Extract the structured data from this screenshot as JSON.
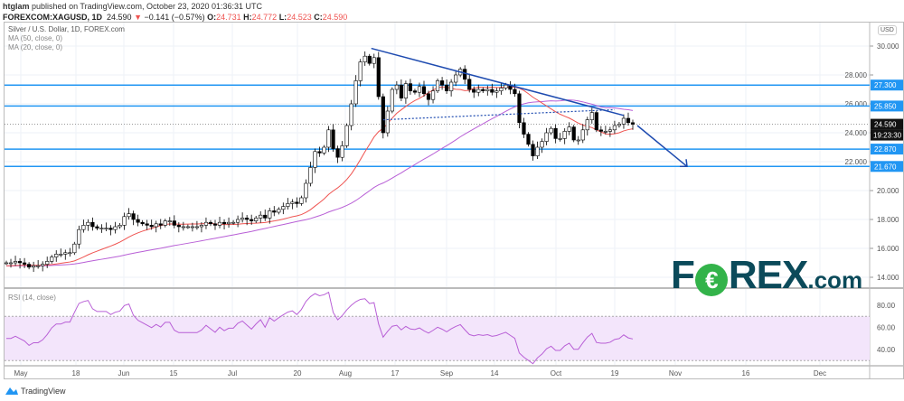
{
  "header": {
    "author": "htglam",
    "published": "published on TradingView.com, October 23, 2020 01:36:31 UTC",
    "symbol": "FOREXCOM:XAGUSD, 1D",
    "last": "24.590",
    "change": "−0.141 (−0.57%)",
    "o_label": "O:",
    "o": "24.731",
    "h_label": "H:",
    "h": "24.772",
    "l_label": "L:",
    "l": "24.523",
    "c_label": "C:",
    "c": "24.590"
  },
  "legend": {
    "title": "Silver / U.S. Dollar, 1D, FOREX.com",
    "ma50": "MA (50, close, 0)",
    "ma20": "MA (20, close, 0)",
    "rsi": "RSI (14, close)"
  },
  "currency": "USD",
  "price_axis": [
    "30.000",
    "28.000",
    "26.000",
    "24.000",
    "22.000",
    "20.000",
    "18.000",
    "16.000",
    "14.000"
  ],
  "price_ticks": [
    30,
    28,
    26,
    24,
    22,
    20,
    18,
    16,
    14
  ],
  "levels": [
    {
      "value": 27.3,
      "label": "27.300"
    },
    {
      "value": 25.85,
      "label": "25.850"
    },
    {
      "value": 22.87,
      "label": "22.870"
    },
    {
      "value": 21.67,
      "label": "21.670"
    }
  ],
  "current": {
    "value": 24.59,
    "label": "24.590",
    "countdown": "19:23:30"
  },
  "rsi_axis": [
    "80.00",
    "60.00",
    "40.00"
  ],
  "rsi_ticks": [
    80,
    60,
    40
  ],
  "time_axis": [
    "May",
    "18",
    "Jun",
    "15",
    "Jul",
    "20",
    "Aug",
    "17",
    "Sep",
    "14",
    "Oct",
    "19",
    "Nov",
    "16",
    "Dec"
  ],
  "colors": {
    "level": "#2196f3",
    "trend": "#1e4bb0",
    "ma20": "#ef5350",
    "ma50": "#b85fd6",
    "rsi": "#b85fd6",
    "bull": "#ffffff",
    "bear": "#000000"
  },
  "logo": {
    "text": "FOREX.com"
  },
  "footer": {
    "brand": "TradingView"
  },
  "chart_data": {
    "type": "candlestick",
    "ylim": [
      13.2,
      31.5
    ],
    "closes": [
      15.0,
      15.0,
      15.1,
      15.0,
      14.9,
      14.7,
      14.8,
      14.8,
      14.9,
      15.1,
      15.4,
      15.6,
      15.6,
      15.7,
      15.7,
      16.3,
      17.3,
      17.6,
      17.8,
      17.5,
      17.4,
      17.4,
      17.4,
      17.3,
      17.5,
      17.6,
      18.2,
      18.4,
      18.0,
      17.8,
      17.7,
      17.6,
      17.5,
      17.7,
      17.6,
      17.9,
      17.9,
      17.6,
      17.5,
      17.5,
      17.5,
      17.5,
      17.5,
      17.6,
      17.8,
      17.7,
      17.6,
      17.8,
      17.7,
      17.8,
      17.8,
      18.0,
      18.1,
      18.0,
      17.9,
      18.1,
      18.3,
      18.1,
      18.6,
      18.5,
      18.7,
      18.9,
      19.1,
      19.2,
      19.1,
      19.5,
      20.5,
      21.6,
      22.7,
      22.6,
      23.0,
      24.2,
      22.9,
      22.3,
      23.1,
      24.5,
      26.0,
      27.6,
      28.9,
      29.3,
      28.8,
      29.2,
      26.5,
      24.0,
      25.5,
      27.0,
      27.3,
      26.4,
      27.4,
      26.9,
      26.8,
      27.2,
      26.7,
      26.3,
      26.9,
      27.6,
      27.3,
      26.9,
      27.5,
      28.0,
      28.4,
      27.7,
      27.0,
      26.8,
      27.0,
      26.9,
      27.0,
      26.8,
      26.9,
      27.1,
      27.3,
      27.0,
      26.7,
      24.7,
      23.9,
      23.2,
      22.4,
      23.0,
      23.4,
      24.0,
      24.3,
      23.6,
      23.6,
      24.1,
      24.4,
      23.5,
      23.5,
      24.2,
      24.9,
      25.4,
      24.2,
      24.1,
      24.1,
      24.2,
      24.5,
      24.6,
      25.0,
      24.7,
      24.59
    ],
    "trendline": [
      29.84,
      25.2
    ],
    "dotted_line": [
      24.9,
      25.6
    ],
    "arrow": [
      24.5,
      21.67
    ],
    "rsi_band": [
      30,
      70
    ]
  }
}
